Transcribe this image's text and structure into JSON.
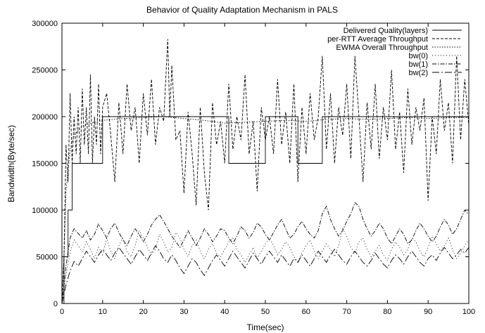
{
  "chart_data": {
    "type": "line",
    "title": "Behavior of Quality Adaptation Mechanism in PALS",
    "xlabel": "Time(sec)",
    "ylabel": "Bandwidth(Byte/sec)",
    "xlim": [
      0,
      100
    ],
    "ylim": [
      0,
      300000
    ],
    "x_ticks": [
      "0",
      "10",
      "20",
      "30",
      "40",
      "50",
      "60",
      "70",
      "80",
      "90",
      "100"
    ],
    "y_ticks": [
      "0",
      "50000",
      "100000",
      "150000",
      "200000",
      "250000",
      "300000"
    ],
    "grid": false,
    "legend_position": "top-right",
    "colors": {
      "lines": "#000000",
      "background": "#ffffff"
    },
    "series": [
      {
        "name": "Delivered Quality(layers)",
        "dash": "solid",
        "x": [
          0,
          0.5,
          0.5,
          1.5,
          1.5,
          2.5,
          2.5,
          10,
          10,
          41,
          41,
          50,
          50,
          58,
          58,
          64,
          64,
          100
        ],
        "y": [
          0,
          0,
          50000,
          50000,
          100000,
          100000,
          150000,
          150000,
          200000,
          200000,
          150000,
          150000,
          200000,
          200000,
          150000,
          150000,
          200000,
          200000
        ]
      },
      {
        "name": "per-RTT Average Throughput",
        "dash": "dashed",
        "x": [
          0,
          0.5,
          1,
          1.5,
          2,
          2.5,
          3,
          3.5,
          4,
          4.5,
          5,
          5.5,
          6,
          6.5,
          7,
          7.5,
          8,
          8.5,
          9,
          9.5,
          10,
          11,
          12,
          13,
          14,
          15,
          16,
          17,
          18,
          19,
          20,
          21,
          22,
          23,
          24,
          25,
          26,
          26.5,
          27,
          28,
          29,
          30,
          31,
          32,
          33,
          34,
          35,
          36,
          37,
          38,
          39,
          40,
          41,
          42,
          43,
          44,
          45,
          46,
          47,
          48,
          49,
          50,
          51,
          52,
          53,
          54,
          55,
          56,
          57,
          58,
          59,
          60,
          61,
          62,
          63,
          64,
          65,
          66,
          67,
          68,
          69,
          70,
          71,
          72,
          73,
          74,
          75,
          76,
          77,
          78,
          79,
          80,
          81,
          82,
          83,
          84,
          85,
          86,
          87,
          88,
          89,
          90,
          91,
          92,
          93,
          94,
          95,
          96,
          97,
          98,
          99,
          100
        ],
        "y": [
          0,
          50000,
          170000,
          130000,
          225000,
          150000,
          200000,
          160000,
          210000,
          150000,
          230000,
          170000,
          210000,
          160000,
          245000,
          150000,
          200000,
          170000,
          235000,
          160000,
          210000,
          225000,
          180000,
          130000,
          215000,
          160000,
          235000,
          185000,
          210000,
          150000,
          225000,
          180000,
          240000,
          170000,
          210000,
          195000,
          283000,
          200000,
          255000,
          175000,
          185000,
          118000,
          205000,
          160000,
          105000,
          210000,
          140000,
          100000,
          215000,
          170000,
          195000,
          150000,
          235000,
          165000,
          200000,
          175000,
          245000,
          160000,
          195000,
          120000,
          210000,
          175000,
          200000,
          160000,
          240000,
          170000,
          205000,
          150000,
          235000,
          130000,
          210000,
          160000,
          225000,
          175000,
          200000,
          265000,
          165000,
          225000,
          150000,
          210000,
          180000,
          235000,
          155000,
          265000,
          200000,
          130000,
          215000,
          165000,
          235000,
          155000,
          210000,
          175000,
          250000,
          165000,
          205000,
          140000,
          230000,
          170000,
          210000,
          185000,
          220000,
          110000,
          200000,
          160000,
          240000,
          185000,
          215000,
          150000,
          265000,
          175000,
          240000,
          190000
        ]
      },
      {
        "name": "EWMA Overall Throughput",
        "dash": "dotted",
        "x": [
          0,
          0.5,
          1,
          2,
          3,
          5,
          7,
          10,
          15,
          20,
          25,
          30,
          35,
          40,
          45,
          50,
          55,
          60,
          65,
          70,
          75,
          80,
          85,
          90,
          95,
          100
        ],
        "y": [
          0,
          50000,
          120000,
          165000,
          180000,
          190000,
          193000,
          196000,
          198000,
          199000,
          200000,
          198000,
          196000,
          193000,
          194000,
          195000,
          196000,
          195000,
          197000,
          198000,
          197000,
          198000,
          199000,
          198000,
          199000,
          199000
        ]
      },
      {
        "name": "bw(0)",
        "dash": "dotted-sparse",
        "x": [
          0,
          1,
          2,
          3,
          4,
          5,
          6,
          7,
          8,
          9,
          10,
          11,
          12,
          13,
          14,
          15,
          16,
          17,
          18,
          19,
          20,
          21,
          22,
          23,
          24,
          25,
          26,
          27,
          28,
          29,
          30,
          31,
          32,
          33,
          34,
          35,
          36,
          37,
          38,
          39,
          40,
          41,
          42,
          43,
          44,
          45,
          46,
          47,
          48,
          49,
          50,
          51,
          52,
          53,
          54,
          55,
          56,
          57,
          58,
          59,
          60,
          61,
          62,
          63,
          64,
          65,
          66,
          67,
          68,
          69,
          70,
          71,
          72,
          73,
          74,
          75,
          76,
          77,
          78,
          79,
          80,
          81,
          82,
          83,
          84,
          85,
          86,
          87,
          88,
          89,
          90,
          91,
          92,
          93,
          94,
          95,
          96,
          97,
          98,
          99,
          100
        ],
        "y": [
          0,
          30000,
          55000,
          68000,
          62000,
          55000,
          66000,
          58000,
          48000,
          60000,
          52000,
          70000,
          56000,
          48000,
          62000,
          70000,
          55000,
          50000,
          62000,
          78000,
          70000,
          60000,
          52000,
          58000,
          74000,
          66000,
          55000,
          60000,
          76000,
          70000,
          58000,
          50000,
          62000,
          68000,
          56000,
          48000,
          58000,
          64000,
          54000,
          50000,
          58000,
          66000,
          70000,
          58000,
          52000,
          44000,
          52000,
          60000,
          48000,
          56000,
          64000,
          70000,
          62000,
          52000,
          58000,
          66000,
          60000,
          50000,
          45000,
          54000,
          62000,
          68000,
          56000,
          48000,
          56000,
          64000,
          58000,
          50000,
          62000,
          80000,
          72000,
          60000,
          54000,
          66000,
          70000,
          58000,
          50000,
          56000,
          62000,
          52000,
          46000,
          58000,
          66000,
          60000,
          52000,
          58000,
          70000,
          66000,
          56000,
          50000,
          60000,
          72000,
          64000,
          56000,
          62000,
          70000,
          58000,
          48000,
          54000,
          62000,
          68000
        ]
      },
      {
        "name": "bw(1)",
        "dash": "dash-dot",
        "x": [
          0,
          1,
          2,
          3,
          4,
          5,
          6,
          7,
          8,
          9,
          10,
          11,
          12,
          13,
          14,
          15,
          16,
          17,
          18,
          19,
          20,
          21,
          22,
          23,
          24,
          25,
          26,
          27,
          28,
          29,
          30,
          31,
          32,
          33,
          34,
          35,
          36,
          37,
          38,
          39,
          40,
          41,
          42,
          43,
          44,
          45,
          46,
          47,
          48,
          49,
          50,
          51,
          52,
          53,
          54,
          55,
          56,
          57,
          58,
          59,
          60,
          61,
          62,
          63,
          64,
          65,
          66,
          67,
          68,
          69,
          70,
          71,
          72,
          73,
          74,
          75,
          76,
          77,
          78,
          79,
          80,
          81,
          82,
          83,
          84,
          85,
          86,
          87,
          88,
          89,
          90,
          91,
          92,
          93,
          94,
          95,
          96,
          97,
          98,
          99,
          100
        ],
        "y": [
          0,
          40000,
          70000,
          80000,
          75000,
          70000,
          78000,
          68000,
          74000,
          85000,
          78000,
          70000,
          80000,
          86000,
          76000,
          68000,
          62000,
          72000,
          80000,
          74000,
          66000,
          74000,
          84000,
          90000,
          95000,
          88000,
          80000,
          72000,
          66000,
          60000,
          68000,
          78000,
          70000,
          62000,
          70000,
          80000,
          74000,
          66000,
          72000,
          80000,
          78000,
          70000,
          64000,
          72000,
          82000,
          78000,
          70000,
          76000,
          86000,
          82000,
          74000,
          68000,
          76000,
          84000,
          90000,
          80000,
          70000,
          74000,
          82000,
          88000,
          80000,
          74000,
          70000,
          78000,
          96000,
          104000,
          90000,
          80000,
          72000,
          78000,
          88000,
          96000,
          108000,
          104000,
          90000,
          80000,
          72000,
          78000,
          86000,
          80000,
          70000,
          64000,
          72000,
          80000,
          74000,
          64000,
          68000,
          78000,
          86000,
          80000,
          72000,
          66000,
          72000,
          82000,
          90000,
          84000,
          74000,
          80000,
          90000,
          100000,
          95000
        ]
      },
      {
        "name": "bw(2)",
        "dash": "long-dash-dot",
        "x": [
          0,
          1,
          2,
          3,
          4,
          5,
          6,
          7,
          8,
          9,
          10,
          11,
          12,
          13,
          14,
          15,
          16,
          17,
          18,
          19,
          20,
          21,
          22,
          23,
          24,
          25,
          26,
          27,
          28,
          29,
          30,
          31,
          32,
          33,
          34,
          35,
          36,
          37,
          38,
          39,
          40,
          41,
          42,
          43,
          44,
          45,
          46,
          47,
          48,
          49,
          50,
          51,
          52,
          53,
          54,
          55,
          56,
          57,
          58,
          59,
          60,
          61,
          62,
          63,
          64,
          65,
          66,
          67,
          68,
          69,
          70,
          71,
          72,
          73,
          74,
          75,
          76,
          77,
          78,
          79,
          80,
          81,
          82,
          83,
          84,
          85,
          86,
          87,
          88,
          89,
          90,
          91,
          92,
          93,
          94,
          95,
          96,
          97,
          98,
          99,
          100
        ],
        "y": [
          0,
          20000,
          35000,
          45000,
          40000,
          48000,
          56000,
          50000,
          44000,
          52000,
          58000,
          52000,
          46000,
          54000,
          60000,
          54000,
          48000,
          42000,
          50000,
          58000,
          52000,
          46000,
          54000,
          62000,
          56000,
          48000,
          44000,
          52000,
          46000,
          38000,
          32000,
          40000,
          48000,
          44000,
          36000,
          30000,
          38000,
          46000,
          52000,
          46000,
          40000,
          48000,
          56000,
          50000,
          44000,
          38000,
          46000,
          54000,
          48000,
          42000,
          50000,
          56000,
          50000,
          44000,
          52000,
          46000,
          40000,
          48000,
          44000,
          52000,
          46000,
          40000,
          48000,
          56000,
          50000,
          44000,
          52000,
          58000,
          52000,
          46000,
          42000,
          50000,
          56000,
          50000,
          44000,
          40000,
          46000,
          54000,
          48000,
          42000,
          38000,
          46000,
          52000,
          48000,
          42000,
          50000,
          56000,
          50000,
          44000,
          40000,
          48000,
          52000,
          46000,
          54000,
          60000,
          54000,
          48000,
          52000,
          58000,
          54000,
          60000
        ]
      }
    ]
  }
}
